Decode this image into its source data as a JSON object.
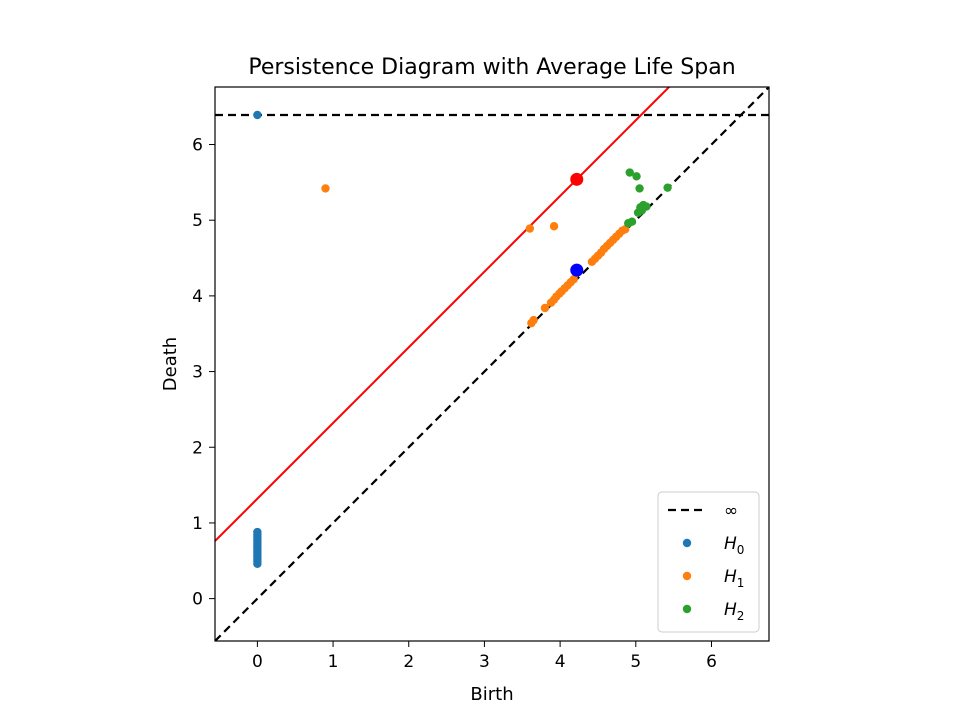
{
  "chart_data": {
    "type": "scatter",
    "title": "Persistence Diagram with Average Life Span",
    "xlabel": "Birth",
    "ylabel": "Death",
    "xlim": [
      -0.56,
      6.76
    ],
    "ylim": [
      -0.56,
      6.76
    ],
    "xticks": [
      0,
      1,
      2,
      3,
      4,
      5,
      6
    ],
    "yticks": [
      0,
      1,
      2,
      3,
      4,
      5,
      6
    ],
    "grid": false,
    "legend_position": "lower-right",
    "infinity_level": 6.39,
    "diagonal": {
      "color": "#000000",
      "style": "dashed"
    },
    "average_line": {
      "color": "#ff0000",
      "intercept": 1.32,
      "slope": 1
    },
    "highlight_points": [
      {
        "x": 4.22,
        "y": 5.54,
        "color": "#ff0000"
      },
      {
        "x": 4.22,
        "y": 4.34,
        "color": "#0000ff"
      }
    ],
    "legend": [
      {
        "label": "∞",
        "kind": "line",
        "color": "#000000"
      },
      {
        "label": "H",
        "sub": "0",
        "kind": "point",
        "color": "#1f77b4"
      },
      {
        "label": "H",
        "sub": "1",
        "kind": "point",
        "color": "#ff7f0e"
      },
      {
        "label": "H",
        "sub": "2",
        "kind": "point",
        "color": "#2ca02c"
      }
    ],
    "series": [
      {
        "name": "H0",
        "color": "#1f77b4",
        "points": [
          [
            0,
            6.39
          ],
          [
            0,
            0.46
          ],
          [
            0,
            0.49
          ],
          [
            0,
            0.52
          ],
          [
            0,
            0.55
          ],
          [
            0,
            0.58
          ],
          [
            0,
            0.61
          ],
          [
            0,
            0.64
          ],
          [
            0,
            0.67
          ],
          [
            0,
            0.7
          ],
          [
            0,
            0.73
          ],
          [
            0,
            0.76
          ],
          [
            0,
            0.79
          ],
          [
            0,
            0.82
          ],
          [
            0,
            0.85
          ],
          [
            0,
            0.88
          ]
        ]
      },
      {
        "name": "H1",
        "color": "#ff7f0e",
        "points": [
          [
            0.9,
            5.42
          ],
          [
            3.6,
            4.89
          ],
          [
            3.92,
            4.92
          ],
          [
            3.62,
            3.64
          ],
          [
            3.65,
            3.68
          ],
          [
            3.8,
            3.84
          ],
          [
            3.88,
            3.91
          ],
          [
            3.92,
            3.95
          ],
          [
            3.95,
            3.99
          ],
          [
            3.99,
            4.03
          ],
          [
            4.02,
            4.06
          ],
          [
            4.06,
            4.1
          ],
          [
            4.1,
            4.14
          ],
          [
            4.14,
            4.18
          ],
          [
            4.18,
            4.22
          ],
          [
            4.42,
            4.45
          ],
          [
            4.46,
            4.49
          ],
          [
            4.5,
            4.53
          ],
          [
            4.54,
            4.57
          ],
          [
            4.58,
            4.62
          ],
          [
            4.62,
            4.66
          ],
          [
            4.66,
            4.7
          ],
          [
            4.7,
            4.74
          ],
          [
            4.74,
            4.78
          ],
          [
            4.78,
            4.82
          ],
          [
            4.82,
            4.86
          ],
          [
            4.86,
            4.88
          ]
        ]
      },
      {
        "name": "H2",
        "color": "#2ca02c",
        "points": [
          [
            4.92,
            5.63
          ],
          [
            5.01,
            5.58
          ],
          [
            5.05,
            5.42
          ],
          [
            5.42,
            5.43
          ],
          [
            4.9,
            4.96
          ],
          [
            5.03,
            5.1
          ],
          [
            5.06,
            5.17
          ],
          [
            5.1,
            5.2
          ],
          [
            5.14,
            5.18
          ],
          [
            4.95,
            4.98
          ],
          [
            5.08,
            5.13
          ]
        ]
      }
    ]
  }
}
